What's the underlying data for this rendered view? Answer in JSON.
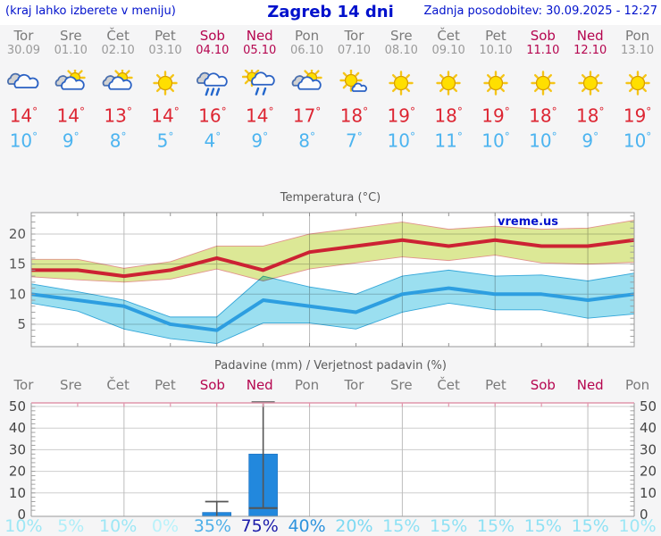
{
  "header": {
    "left_note": "(kraj lahko izberete v meniju)",
    "title": "Zagreb 14 dni",
    "updated": "Zadnja posodobitev: 30.09.2025 - 12:27"
  },
  "units": {
    "degree_symbol": "°"
  },
  "colors": {
    "accent_blue": "#0011cc",
    "weekday_text": "#7a7a7a",
    "weekend_text": "#b5054f",
    "tmax_text": "#dd2633",
    "tmin_text": "#4cb4f0",
    "warm_line": "#cc2233",
    "warm_band": "#dce896",
    "warm_band_edge": "#e2938d",
    "cold_line": "#2d9ee0",
    "cold_band": "#9bdff0",
    "cold_band_edge": "#35a7d9",
    "bar_fill": "#2288dd",
    "whisker": "#555555",
    "precip_top_border": "#e096ac"
  },
  "days": [
    {
      "name": "Tor",
      "date": "30.09",
      "weekend": false,
      "icon": "cloudy",
      "tmax": "14",
      "tmin": "10",
      "prob_label": "10%",
      "prob_color": "#9de7f5"
    },
    {
      "name": "Sre",
      "date": "01.10",
      "weekend": false,
      "icon": "sun-cloud",
      "tmax": "14",
      "tmin": "9",
      "prob_label": "5%",
      "prob_color": "#aeeef8"
    },
    {
      "name": "Čet",
      "date": "02.10",
      "weekend": false,
      "icon": "sun-cloud",
      "tmax": "13",
      "tmin": "8",
      "prob_label": "10%",
      "prob_color": "#9de7f5"
    },
    {
      "name": "Pet",
      "date": "03.10",
      "weekend": false,
      "icon": "sunny",
      "tmax": "14",
      "tmin": "5",
      "prob_label": "0%",
      "prob_color": "#b9f2fa"
    },
    {
      "name": "Sob",
      "date": "04.10",
      "weekend": true,
      "icon": "rain",
      "tmax": "16",
      "tmin": "4",
      "prob_label": "35%",
      "prob_color": "#4fb0e8"
    },
    {
      "name": "Ned",
      "date": "05.10",
      "weekend": true,
      "icon": "sun-rain",
      "tmax": "14",
      "tmin": "9",
      "prob_label": "75%",
      "prob_color": "#1c1caa"
    },
    {
      "name": "Pon",
      "date": "06.10",
      "weekend": false,
      "icon": "sun-cloud",
      "tmax": "17",
      "tmin": "8",
      "prob_label": "40%",
      "prob_color": "#2e93dd"
    },
    {
      "name": "Tor",
      "date": "07.10",
      "weekend": false,
      "icon": "mostly-sunny",
      "tmax": "18",
      "tmin": "7",
      "prob_label": "20%",
      "prob_color": "#7cd9f2"
    },
    {
      "name": "Sre",
      "date": "08.10",
      "weekend": false,
      "icon": "sunny",
      "tmax": "19",
      "tmin": "10",
      "prob_label": "15%",
      "prob_color": "#8ee1f4"
    },
    {
      "name": "Čet",
      "date": "09.10",
      "weekend": false,
      "icon": "sunny",
      "tmax": "18",
      "tmin": "11",
      "prob_label": "15%",
      "prob_color": "#8ee1f4"
    },
    {
      "name": "Pet",
      "date": "10.10",
      "weekend": false,
      "icon": "sunny",
      "tmax": "19",
      "tmin": "10",
      "prob_label": "15%",
      "prob_color": "#8ee1f4"
    },
    {
      "name": "Sob",
      "date": "11.10",
      "weekend": true,
      "icon": "sunny",
      "tmax": "18",
      "tmin": "10",
      "prob_label": "15%",
      "prob_color": "#8ee1f4"
    },
    {
      "name": "Ned",
      "date": "12.10",
      "weekend": true,
      "icon": "sunny",
      "tmax": "18",
      "tmin": "9",
      "prob_label": "15%",
      "prob_color": "#8ee1f4"
    },
    {
      "name": "Pon",
      "date": "13.10",
      "weekend": false,
      "icon": "sunny",
      "tmax": "19",
      "tmin": "10",
      "prob_label": "10%",
      "prob_color": "#9de7f5"
    }
  ],
  "chart_data": [
    {
      "type": "line",
      "title": "Temperatura (°C)",
      "watermark": "vreme.us",
      "xlabel": "",
      "ylabel": "",
      "yticks": [
        20,
        15,
        10,
        5
      ],
      "ylim": [
        1.3,
        23.6
      ],
      "grid": "on, vertical every 2 days",
      "legend": "none",
      "x_days": [
        "Tor 30.09",
        "Sre 01.10",
        "Čet 02.10",
        "Pet 03.10",
        "Sob 04.10",
        "Ned 05.10",
        "Pon 06.10",
        "Tor 07.10",
        "Sre 08.10",
        "Čet 09.10",
        "Pet 10.10",
        "Sob 11.10",
        "Ned 12.10",
        "Pon 13.10"
      ],
      "series": [
        {
          "name": "tmax",
          "values": [
            14,
            14,
            13,
            14,
            16,
            14,
            17,
            18,
            19,
            18,
            19,
            18,
            18,
            19
          ]
        },
        {
          "name": "tmax_band_upper",
          "values": [
            15.8,
            15.8,
            14.3,
            15.4,
            18,
            18,
            20,
            21,
            22,
            20.8,
            21.3,
            20.8,
            21,
            22.3
          ]
        },
        {
          "name": "tmax_band_lower",
          "values": [
            12.9,
            12.4,
            12,
            12.5,
            14.2,
            12.2,
            14.2,
            15.2,
            16.2,
            15.6,
            16.5,
            15.2,
            15,
            15.3
          ]
        },
        {
          "name": "tmin",
          "values": [
            10,
            9,
            8,
            5,
            4,
            9,
            8,
            7,
            10,
            11,
            10,
            10,
            9,
            10
          ]
        },
        {
          "name": "tmin_band_upper",
          "values": [
            11.7,
            10.4,
            9,
            6.2,
            6.2,
            13,
            11.2,
            10,
            13,
            14,
            13,
            13.2,
            12.2,
            13.5
          ]
        },
        {
          "name": "tmin_band_lower",
          "values": [
            8.5,
            7.2,
            4.2,
            2.6,
            1.8,
            5.2,
            5.2,
            4.2,
            7,
            8.5,
            7.4,
            7.4,
            6,
            6.7
          ]
        }
      ]
    },
    {
      "type": "bar",
      "title": "Padavine (mm) / Verjetnost padavin (%)",
      "categories": [
        "Tor",
        "Sre",
        "Čet",
        "Pet",
        "Sob",
        "Ned",
        "Pon",
        "Tor",
        "Sre",
        "Čet",
        "Pet",
        "Sob",
        "Ned",
        "Pon"
      ],
      "values_mm": [
        0,
        0,
        0,
        0,
        1,
        28,
        0,
        0,
        0,
        0,
        0,
        0,
        0,
        0
      ],
      "range_max_mm": [
        null,
        null,
        null,
        null,
        6,
        52,
        null,
        null,
        null,
        null,
        null,
        null,
        null,
        null
      ],
      "range_mid_mm": [
        null,
        null,
        null,
        null,
        null,
        3,
        null,
        null,
        null,
        null,
        null,
        null,
        null,
        null
      ],
      "probabilities_pct": [
        10,
        5,
        10,
        0,
        35,
        75,
        40,
        20,
        15,
        15,
        15,
        15,
        15,
        10
      ],
      "yticks": [
        0,
        10,
        20,
        30,
        40,
        50
      ],
      "ylim": [
        0,
        52
      ],
      "grid": "on, vertical every 2 days, y labels on both sides"
    }
  ]
}
